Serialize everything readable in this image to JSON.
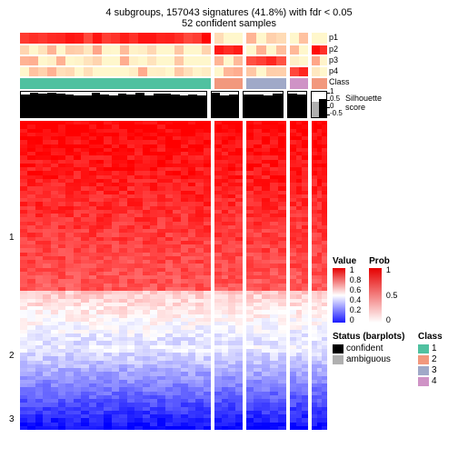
{
  "title": "4 subgroups, 157043 signatures (41.8%) with fdr < 0.05",
  "subtitle": "52 confident samples",
  "blocks": {
    "widths_pct": [
      62,
      9,
      13,
      6,
      5
    ],
    "class_colors": [
      "#50c1a0",
      "#f2987d",
      "#a0a9c8",
      "#cf93c6",
      "#f2987d"
    ]
  },
  "anno_labels": [
    "p1",
    "p2",
    "p3",
    "p4",
    "Class"
  ],
  "silhouette": {
    "label": "Silhouette\nscore",
    "ticks": [
      "1",
      "0.5",
      "0",
      "-0.5"
    ],
    "heights_pct": [
      94,
      92,
      93,
      91,
      94,
      93,
      92,
      93,
      94,
      91,
      92,
      93,
      94,
      90,
      92,
      91,
      93,
      92,
      93,
      94
    ]
  },
  "row_groups": [
    "1",
    "2",
    "3"
  ],
  "legends": {
    "value": {
      "title": "Value",
      "ticks": [
        "1",
        "0.8",
        "0.6",
        "0.4",
        "0.2",
        "0"
      ],
      "top": "#e60000",
      "mid": "#ffffff",
      "bot": "#1a1aff"
    },
    "prob": {
      "title": "Prob",
      "ticks": [
        "1",
        "0.5",
        "0"
      ],
      "top": "#e60000",
      "bot": "#ffffff"
    },
    "status": {
      "title": "Status (barplots)",
      "items": [
        {
          "c": "#000000",
          "l": "confident"
        },
        {
          "c": "#b0b0b0",
          "l": "ambiguous"
        }
      ]
    },
    "class": {
      "title": "Class",
      "items": [
        {
          "c": "#50c1a0",
          "l": "1"
        },
        {
          "c": "#f2987d",
          "l": "2"
        },
        {
          "c": "#a0a9c8",
          "l": "3"
        },
        {
          "c": "#cf93c6",
          "l": "4"
        }
      ]
    }
  },
  "colors": {
    "red_hi": "#e60000",
    "red_md": "#ff5533",
    "red_lo": "#ffccbb",
    "white": "#ffffff",
    "blue_lo": "#ccccff",
    "blue_md": "#6666ff",
    "blue_hi": "#1a1aff"
  }
}
